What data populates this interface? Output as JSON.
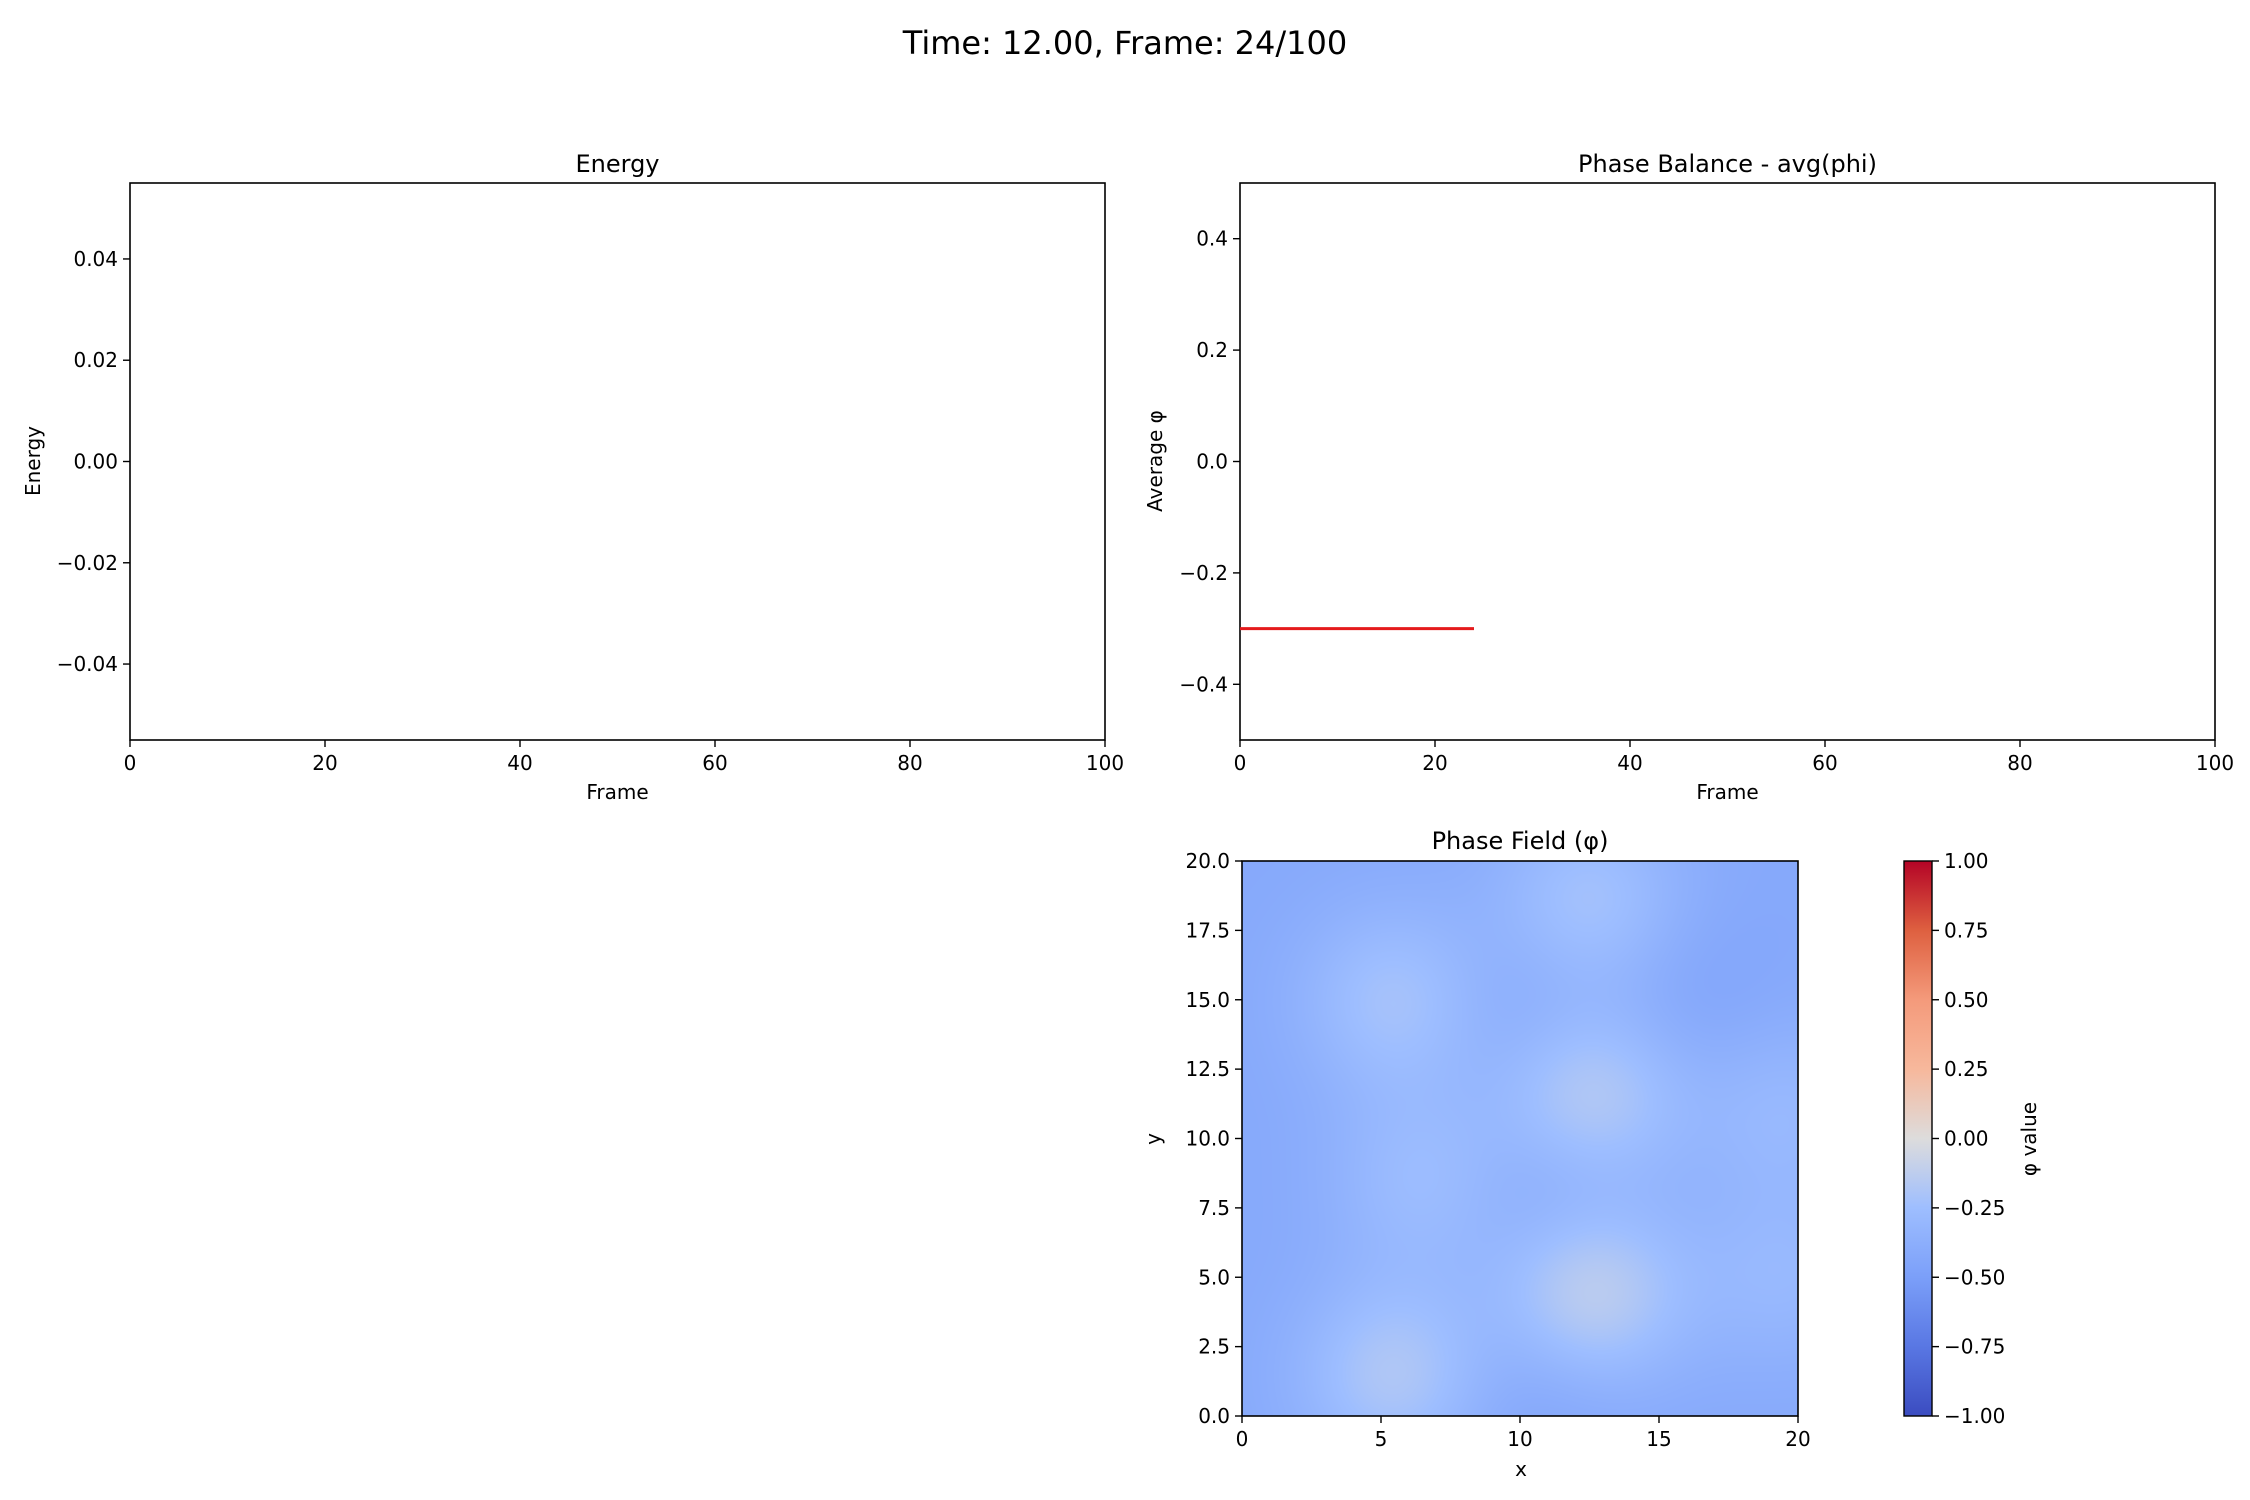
{
  "suptitle": "Time: 12.00, Frame: 24/100",
  "chart_data": [
    {
      "type": "line",
      "title": "Energy",
      "xlabel": "Frame",
      "ylabel": "Energy",
      "xlim": [
        0,
        100
      ],
      "ylim": [
        -0.055,
        0.055
      ],
      "xticks": [
        0,
        20,
        40,
        60,
        80,
        100
      ],
      "xtick_labels": [
        "0",
        "20",
        "40",
        "60",
        "80",
        "100"
      ],
      "yticks": [
        -0.04,
        -0.02,
        0.0,
        0.02,
        0.04
      ],
      "ytick_labels": [
        "−0.04",
        "−0.02",
        "0.00",
        "0.02",
        "0.04"
      ],
      "grid": false,
      "series": []
    },
    {
      "type": "line",
      "title": "Phase Balance - avg(phi)",
      "xlabel": "Frame",
      "ylabel": "Average φ",
      "xlim": [
        0,
        100
      ],
      "ylim": [
        -0.5,
        0.5
      ],
      "xticks": [
        0,
        20,
        40,
        60,
        80,
        100
      ],
      "xtick_labels": [
        "0",
        "20",
        "40",
        "60",
        "80",
        "100"
      ],
      "yticks": [
        -0.4,
        -0.2,
        0.0,
        0.2,
        0.4
      ],
      "ytick_labels": [
        "−0.4",
        "−0.2",
        "0.0",
        "0.2",
        "0.4"
      ],
      "grid": false,
      "series": [
        {
          "color": "#e41a1c",
          "x": [
            0,
            24
          ],
          "y": [
            -0.3,
            -0.3
          ]
        }
      ]
    },
    {
      "type": "heatmap",
      "title": "Phase Field (φ)",
      "xlabel": "x",
      "ylabel": "y",
      "xlim": [
        0,
        20
      ],
      "ylim": [
        0,
        20
      ],
      "xticks": [
        0,
        5,
        10,
        15,
        20
      ],
      "xtick_labels": [
        "0",
        "5",
        "10",
        "15",
        "20"
      ],
      "yticks": [
        0,
        2.5,
        5,
        7.5,
        10,
        12.5,
        15,
        17.5,
        20
      ],
      "ytick_labels": [
        "0.0",
        "2.5",
        "5.0",
        "7.5",
        "10.0",
        "12.5",
        "15.0",
        "17.5",
        "20.0"
      ],
      "colormap": "coolwarm",
      "vmin": -1.0,
      "vmax": 1.0,
      "colorbar_label": "φ value",
      "colorbar_ticks": [
        -1.0,
        -0.75,
        -0.5,
        -0.25,
        0.0,
        0.25,
        0.5,
        0.75,
        1.0
      ],
      "colorbar_tick_labels": [
        "−1.00",
        "−0.75",
        "−0.50",
        "−0.25",
        "0.00",
        "0.25",
        "0.50",
        "0.75",
        "1.00"
      ],
      "field": {
        "base": -0.42,
        "blobs": [
          {
            "x": 5.5,
            "y": 15.0,
            "value": 0.2
          },
          {
            "x": 12.5,
            "y": 11.5,
            "value": 0.28
          },
          {
            "x": 12.5,
            "y": 4.5,
            "value": 0.32
          },
          {
            "x": 5.5,
            "y": 1.5,
            "value": 0.24
          },
          {
            "x": 6.5,
            "y": 8.5,
            "value": 0.15
          },
          {
            "x": 12.5,
            "y": 18.5,
            "value": 0.2
          },
          {
            "x": 19.5,
            "y": 11.0,
            "value": 0.12
          },
          {
            "x": 19.5,
            "y": 5.0,
            "value": 0.12
          },
          {
            "x": 11.5,
            "y": 8.0,
            "value": -0.1
          },
          {
            "x": 16.0,
            "y": 15.0,
            "value": -0.05
          },
          {
            "x": 10.5,
            "y": 14.5,
            "value": -0.06
          },
          {
            "x": 10.5,
            "y": 1.5,
            "value": -0.06
          }
        ]
      }
    }
  ]
}
